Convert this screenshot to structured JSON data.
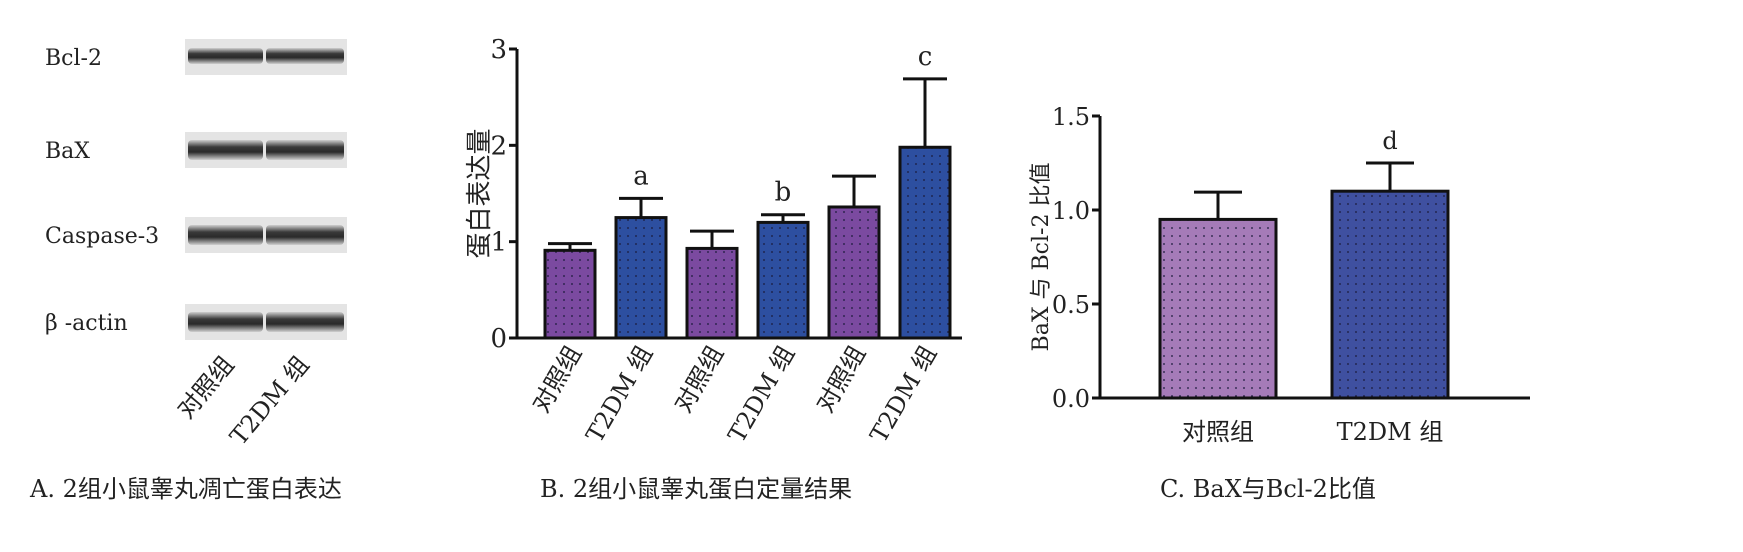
{
  "colors": {
    "purple": "#7b4aa0",
    "blue": "#2d4fa0",
    "light_purple": "#a57bb8",
    "blue_c": "#3f50a0"
  },
  "panel_a": {
    "rows": [
      {
        "label": "Bcl-2"
      },
      {
        "label": "BaX"
      },
      {
        "label": "Caspase-3"
      },
      {
        "label": "β -actin"
      }
    ],
    "lanes": [
      "对照组",
      "T2DM 组"
    ],
    "caption": "A. 2组小鼠睾丸凋亡蛋白表达"
  },
  "chart_data": [
    {
      "type": "bar",
      "title": "B. 2组小鼠睾丸蛋白定量结果",
      "ylabel": "蛋白表达量",
      "xlabel": "",
      "ylim": [
        0,
        3
      ],
      "yticks": [
        "0",
        "1",
        "2",
        "3"
      ],
      "categories": [
        "对照组",
        "T2DM 组",
        "对照组",
        "T2DM 组",
        "对照组",
        "T2DM 组"
      ],
      "values": [
        0.91,
        1.25,
        0.93,
        1.2,
        1.36,
        1.98
      ],
      "error": [
        0.07,
        0.2,
        0.18,
        0.08,
        0.32,
        0.71
      ],
      "annotations": [
        "",
        "a",
        "",
        "b",
        "",
        "c"
      ],
      "bar_colors": [
        "purple",
        "blue",
        "purple",
        "blue",
        "purple",
        "blue"
      ],
      "grid": false
    },
    {
      "type": "bar",
      "title": "C. BaX与Bcl-2比值",
      "ylabel": "BaX 与 Bcl-2 比值",
      "xlabel": "",
      "ylim": [
        0,
        1.5
      ],
      "yticks": [
        "0.0",
        "0.5",
        "1.0",
        "1.5"
      ],
      "categories": [
        "对照组",
        "T2DM 组"
      ],
      "values": [
        0.95,
        1.1
      ],
      "error": [
        0.145,
        0.15
      ],
      "annotations": [
        "",
        "d"
      ],
      "bar_colors": [
        "light_purple",
        "blue_c"
      ],
      "grid": false
    }
  ]
}
